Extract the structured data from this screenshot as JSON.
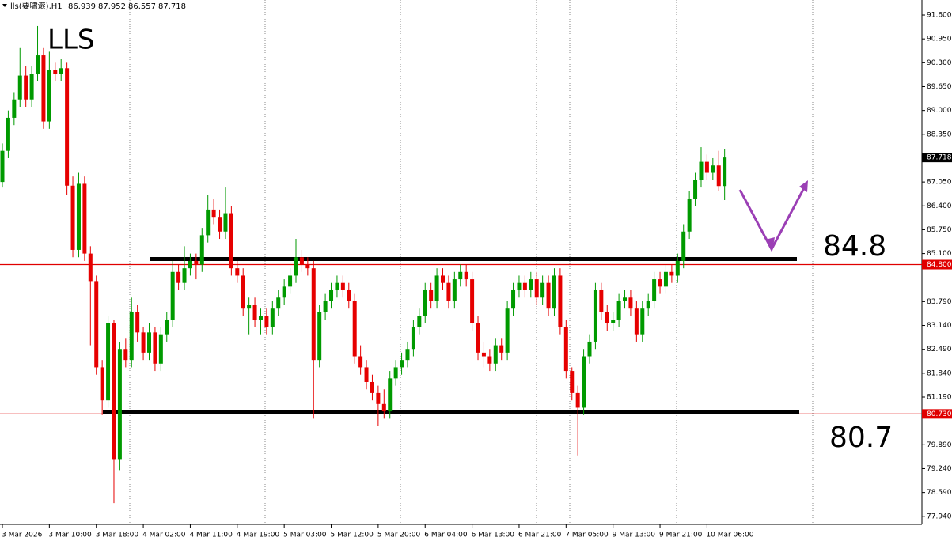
{
  "chart_data": {
    "type": "candlestick",
    "symbol": "lls(要啸滚),H1",
    "header_ohlc": [
      86.939,
      87.952,
      86.557,
      87.718
    ],
    "title": "LLS",
    "ylim": [
      77.72,
      92.01
    ],
    "yticks": [
      {
        "value": 91.6,
        "label": "91.600"
      },
      {
        "value": 90.95,
        "label": "90.950"
      },
      {
        "value": 90.3,
        "label": "90.300"
      },
      {
        "value": 89.65,
        "label": "89.650"
      },
      {
        "value": 89.0,
        "label": "89.000"
      },
      {
        "value": 88.35,
        "label": "88.350"
      },
      {
        "value": 87.05,
        "label": "87.050"
      },
      {
        "value": 86.4,
        "label": "86.400"
      },
      {
        "value": 85.75,
        "label": "85.750"
      },
      {
        "value": 85.1,
        "label": "85.100"
      },
      {
        "value": 83.79,
        "label": "83.790"
      },
      {
        "value": 83.14,
        "label": "83.140"
      },
      {
        "value": 82.49,
        "label": "82.490"
      },
      {
        "value": 81.84,
        "label": "81.840"
      },
      {
        "value": 81.19,
        "label": "81.190"
      },
      {
        "value": 79.89,
        "label": "79.890"
      },
      {
        "value": 79.24,
        "label": "79.240"
      },
      {
        "value": 78.59,
        "label": "78.590"
      },
      {
        "value": 77.94,
        "label": "77.940"
      }
    ],
    "last_price": 87.718,
    "levels": [
      {
        "value": 84.8,
        "label": "84.800",
        "color": "#e00000"
      },
      {
        "value": 80.73,
        "label": "80.730",
        "color": "#e00000"
      }
    ],
    "drawn_lines": [
      84.95,
      80.78
    ],
    "annotations": [
      "84.8",
      "80.7"
    ],
    "up_color": "#009a00",
    "down_color": "#e60000",
    "categories": [
      "3 Mar 2026",
      null,
      null,
      null,
      null,
      null,
      null,
      null,
      "3 Mar 10:00",
      null,
      null,
      null,
      null,
      null,
      null,
      null,
      "3 Mar 18:00",
      null,
      null,
      null,
      null,
      null,
      null,
      null,
      "4 Mar 02:00",
      null,
      null,
      null,
      null,
      null,
      null,
      null,
      "4 Mar 11:00",
      null,
      null,
      null,
      null,
      null,
      null,
      null,
      "4 Mar 19:00",
      null,
      null,
      null,
      null,
      null,
      null,
      null,
      "5 Mar 03:00",
      null,
      null,
      null,
      null,
      null,
      null,
      null,
      "5 Mar 12:00",
      null,
      null,
      null,
      null,
      null,
      null,
      null,
      "5 Mar 20:00",
      null,
      null,
      null,
      null,
      null,
      null,
      null,
      "6 Mar 04:00",
      null,
      null,
      null,
      null,
      null,
      null,
      null,
      "6 Mar 13:00",
      null,
      null,
      null,
      null,
      null,
      null,
      null,
      "6 Mar 21:00",
      null,
      null,
      null,
      null,
      null,
      null,
      null,
      "7 Mar 05:00",
      null,
      null,
      null,
      null,
      null,
      null,
      null,
      "9 Mar 13:00",
      null,
      null,
      null,
      null,
      null,
      null,
      null,
      "9 Mar 21:00",
      null,
      null,
      null,
      null,
      null,
      null,
      null,
      "10 Mar 06:00",
      null,
      null,
      null
    ],
    "ohlc": [
      [
        87.05,
        88.1,
        86.9,
        87.9
      ],
      [
        87.9,
        89.0,
        87.7,
        88.8
      ],
      [
        88.8,
        89.5,
        88.6,
        89.3
      ],
      [
        89.3,
        90.7,
        89.1,
        89.95
      ],
      [
        89.95,
        90.2,
        89.1,
        89.3
      ],
      [
        89.3,
        90.2,
        89.1,
        90.0
      ],
      [
        90.0,
        91.3,
        89.8,
        90.5
      ],
      [
        90.5,
        90.7,
        88.5,
        88.7
      ],
      [
        88.7,
        90.6,
        88.5,
        90.1
      ],
      [
        90.1,
        90.3,
        89.8,
        90.0
      ],
      [
        90.0,
        90.4,
        89.8,
        90.15
      ],
      [
        90.15,
        90.3,
        86.7,
        86.95
      ],
      [
        86.95,
        87.2,
        85.0,
        85.2
      ],
      [
        85.2,
        87.3,
        85.0,
        87.0
      ],
      [
        87.0,
        87.2,
        84.9,
        85.1
      ],
      [
        85.1,
        85.3,
        82.6,
        84.35
      ],
      [
        84.35,
        84.5,
        81.8,
        82.0
      ],
      [
        82.0,
        82.2,
        80.7,
        81.1
      ],
      [
        81.1,
        83.4,
        80.9,
        83.2
      ],
      [
        83.2,
        83.3,
        78.3,
        79.5
      ],
      [
        79.5,
        82.7,
        79.2,
        82.5
      ],
      [
        82.5,
        82.8,
        82.0,
        82.2
      ],
      [
        82.2,
        83.9,
        82.0,
        83.5
      ],
      [
        83.5,
        83.7,
        82.7,
        82.95
      ],
      [
        82.95,
        83.1,
        82.2,
        82.4
      ],
      [
        82.4,
        83.2,
        82.2,
        82.95
      ],
      [
        82.95,
        83.1,
        81.9,
        82.1
      ],
      [
        82.1,
        83.1,
        81.9,
        82.9
      ],
      [
        82.9,
        83.5,
        82.7,
        83.3
      ],
      [
        83.3,
        84.9,
        83.1,
        84.6
      ],
      [
        84.6,
        84.8,
        84.1,
        84.3
      ],
      [
        84.3,
        85.3,
        84.1,
        84.7
      ],
      [
        84.7,
        85.1,
        84.5,
        84.9
      ],
      [
        84.9,
        85.1,
        84.4,
        84.8
      ],
      [
        84.8,
        85.8,
        84.6,
        85.6
      ],
      [
        85.6,
        86.7,
        85.4,
        86.3
      ],
      [
        86.3,
        86.6,
        85.9,
        86.1
      ],
      [
        86.1,
        86.3,
        85.5,
        85.7
      ],
      [
        85.7,
        86.9,
        85.5,
        86.2
      ],
      [
        86.2,
        86.4,
        84.5,
        84.7
      ],
      [
        84.7,
        84.9,
        84.3,
        84.5
      ],
      [
        84.5,
        84.7,
        83.4,
        83.6
      ],
      [
        83.6,
        83.9,
        82.9,
        83.7
      ],
      [
        83.7,
        83.9,
        83.1,
        83.3
      ],
      [
        83.3,
        83.6,
        82.9,
        83.4
      ],
      [
        83.4,
        83.6,
        82.9,
        83.1
      ],
      [
        83.1,
        83.8,
        82.9,
        83.6
      ],
      [
        83.6,
        84.1,
        83.4,
        83.9
      ],
      [
        83.9,
        84.4,
        83.7,
        84.2
      ],
      [
        84.2,
        84.7,
        84.0,
        84.5
      ],
      [
        84.5,
        85.5,
        84.3,
        85.0
      ],
      [
        85.0,
        85.2,
        84.6,
        84.8
      ],
      [
        84.8,
        85.0,
        84.5,
        84.7
      ],
      [
        84.7,
        84.9,
        80.6,
        82.2
      ],
      [
        82.2,
        83.7,
        82.0,
        83.5
      ],
      [
        83.5,
        84.0,
        83.3,
        83.8
      ],
      [
        83.8,
        84.3,
        83.6,
        84.1
      ],
      [
        84.1,
        84.5,
        83.9,
        84.3
      ],
      [
        84.3,
        84.5,
        83.9,
        84.1
      ],
      [
        84.1,
        84.3,
        83.6,
        83.8
      ],
      [
        83.8,
        84.0,
        82.1,
        82.3
      ],
      [
        82.3,
        82.6,
        81.8,
        82.0
      ],
      [
        82.0,
        82.2,
        81.4,
        81.6
      ],
      [
        81.6,
        81.8,
        81.1,
        81.3
      ],
      [
        81.3,
        81.5,
        80.4,
        81.0
      ],
      [
        81.0,
        81.4,
        80.6,
        80.8
      ],
      [
        80.8,
        81.9,
        80.6,
        81.7
      ],
      [
        81.7,
        82.2,
        81.5,
        82.0
      ],
      [
        82.0,
        82.4,
        81.8,
        82.2
      ],
      [
        82.2,
        82.7,
        82.0,
        82.5
      ],
      [
        82.5,
        83.3,
        82.3,
        83.1
      ],
      [
        83.1,
        83.6,
        82.9,
        83.4
      ],
      [
        83.4,
        84.3,
        83.2,
        84.1
      ],
      [
        84.1,
        84.3,
        83.6,
        83.8
      ],
      [
        83.8,
        84.7,
        83.6,
        84.5
      ],
      [
        84.5,
        84.7,
        84.1,
        84.3
      ],
      [
        84.3,
        84.5,
        83.6,
        83.8
      ],
      [
        83.8,
        84.6,
        83.6,
        84.4
      ],
      [
        84.4,
        84.8,
        84.2,
        84.6
      ],
      [
        84.6,
        84.8,
        84.2,
        84.4
      ],
      [
        84.4,
        84.6,
        83.0,
        83.2
      ],
      [
        83.2,
        83.4,
        82.2,
        82.4
      ],
      [
        82.4,
        82.7,
        82.0,
        82.3
      ],
      [
        82.3,
        82.5,
        81.9,
        82.1
      ],
      [
        82.1,
        82.8,
        81.9,
        82.6
      ],
      [
        82.6,
        82.8,
        82.2,
        82.4
      ],
      [
        82.4,
        83.8,
        82.2,
        83.6
      ],
      [
        83.6,
        84.3,
        83.4,
        84.1
      ],
      [
        84.1,
        84.5,
        83.9,
        84.3
      ],
      [
        84.3,
        84.5,
        83.9,
        84.1
      ],
      [
        84.1,
        84.6,
        83.9,
        84.4
      ],
      [
        84.4,
        84.6,
        83.7,
        83.9
      ],
      [
        83.9,
        84.5,
        83.7,
        84.3
      ],
      [
        84.3,
        84.5,
        83.4,
        83.6
      ],
      [
        83.6,
        84.7,
        83.4,
        84.5
      ],
      [
        84.5,
        84.7,
        82.9,
        83.1
      ],
      [
        83.1,
        83.3,
        81.7,
        81.9
      ],
      [
        81.9,
        82.0,
        81.1,
        81.3
      ],
      [
        81.3,
        81.5,
        79.6,
        80.9
      ],
      [
        80.9,
        82.5,
        80.7,
        82.3
      ],
      [
        82.3,
        82.9,
        82.1,
        82.7
      ],
      [
        82.7,
        84.3,
        82.5,
        84.1
      ],
      [
        84.1,
        84.3,
        83.3,
        83.5
      ],
      [
        83.5,
        83.7,
        83.0,
        83.2
      ],
      [
        83.2,
        83.5,
        83.0,
        83.3
      ],
      [
        83.3,
        84.0,
        83.1,
        83.8
      ],
      [
        83.8,
        84.1,
        83.6,
        83.9
      ],
      [
        83.9,
        84.1,
        83.4,
        83.6
      ],
      [
        83.6,
        83.8,
        82.7,
        82.9
      ],
      [
        82.9,
        83.8,
        82.7,
        83.6
      ],
      [
        83.6,
        84.0,
        83.4,
        83.8
      ],
      [
        83.8,
        84.6,
        83.6,
        84.4
      ],
      [
        84.4,
        84.6,
        84.0,
        84.2
      ],
      [
        84.2,
        84.8,
        84.0,
        84.6
      ],
      [
        84.6,
        84.8,
        84.3,
        84.5
      ],
      [
        84.5,
        85.1,
        84.3,
        84.9
      ],
      [
        84.9,
        85.9,
        84.7,
        85.7
      ],
      [
        85.7,
        86.8,
        85.5,
        86.6
      ],
      [
        86.6,
        87.3,
        86.4,
        87.1
      ],
      [
        87.1,
        88.0,
        86.9,
        87.6
      ],
      [
        87.6,
        87.8,
        87.1,
        87.3
      ],
      [
        87.3,
        87.7,
        87.1,
        87.5
      ],
      [
        87.5,
        87.9,
        86.8,
        86.94
      ],
      [
        86.94,
        87.952,
        86.557,
        87.718
      ]
    ]
  }
}
